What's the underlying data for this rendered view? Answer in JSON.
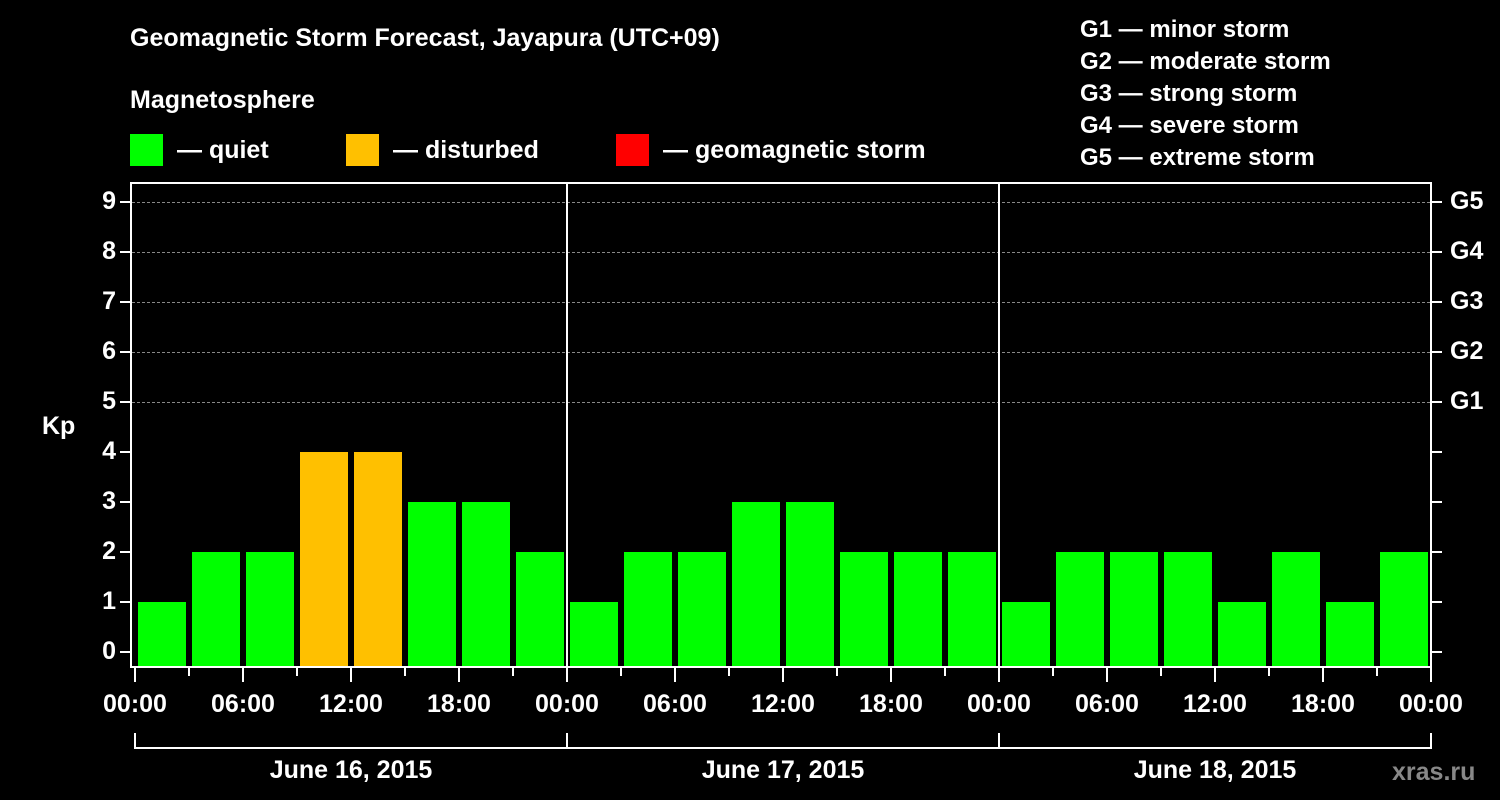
{
  "header": {
    "title": "Geomagnetic Storm Forecast, Jayapura (UTC+09)",
    "subtitle": "Magnetosphere"
  },
  "legend": [
    {
      "label": "— quiet",
      "color": "#00ff00"
    },
    {
      "label": "— disturbed",
      "color": "#ffc000"
    },
    {
      "label": "— geomagnetic storm",
      "color": "#ff0000"
    }
  ],
  "g_legend": [
    "G1 — minor storm",
    "G2 — moderate storm",
    "G3 — strong storm",
    "G4 — severe storm",
    "G5 — extreme storm"
  ],
  "axis": {
    "ylabel": "Kp",
    "yticks": [
      "0",
      "1",
      "2",
      "3",
      "4",
      "5",
      "6",
      "7",
      "8",
      "9"
    ],
    "right_ticks": [
      "G1",
      "G2",
      "G3",
      "G4",
      "G5"
    ],
    "xticks": [
      "00:00",
      "06:00",
      "12:00",
      "18:00",
      "00:00",
      "06:00",
      "12:00",
      "18:00",
      "00:00",
      "06:00",
      "12:00",
      "18:00",
      "00:00"
    ],
    "dates": [
      "June 16, 2015",
      "June 17, 2015",
      "June 18, 2015"
    ]
  },
  "credit": "xras.ru",
  "chart_data": {
    "type": "bar",
    "title": "Geomagnetic Storm Forecast, Jayapura (UTC+09)",
    "xlabel": "",
    "ylabel": "Kp",
    "ylim": [
      0,
      9
    ],
    "categories": [
      "June 16 00:00",
      "June 16 03:00",
      "June 16 06:00",
      "June 16 09:00",
      "June 16 12:00",
      "June 16 15:00",
      "June 16 18:00",
      "June 16 21:00",
      "June 17 00:00",
      "June 17 03:00",
      "June 17 06:00",
      "June 17 09:00",
      "June 17 12:00",
      "June 17 15:00",
      "June 17 18:00",
      "June 17 21:00",
      "June 18 00:00",
      "June 18 03:00",
      "June 18 06:00",
      "June 18 09:00",
      "June 18 12:00",
      "June 18 15:00",
      "June 18 18:00",
      "June 18 21:00"
    ],
    "values": [
      1,
      2,
      2,
      4,
      4,
      3,
      3,
      2,
      1,
      2,
      2,
      3,
      3,
      2,
      2,
      2,
      1,
      2,
      2,
      2,
      1,
      2,
      1,
      2
    ],
    "colors_by_level": {
      "quiet": "#00ff00",
      "disturbed": "#ffc000",
      "storm": "#ff0000"
    },
    "legend": [
      "quiet",
      "disturbed",
      "geomagnetic storm"
    ],
    "secondary_axis": {
      "G1": 5,
      "G2": 6,
      "G3": 7,
      "G4": 8,
      "G5": 9
    },
    "grid": "dashed horizontal at Kp 5-9",
    "legend_position": "top"
  }
}
